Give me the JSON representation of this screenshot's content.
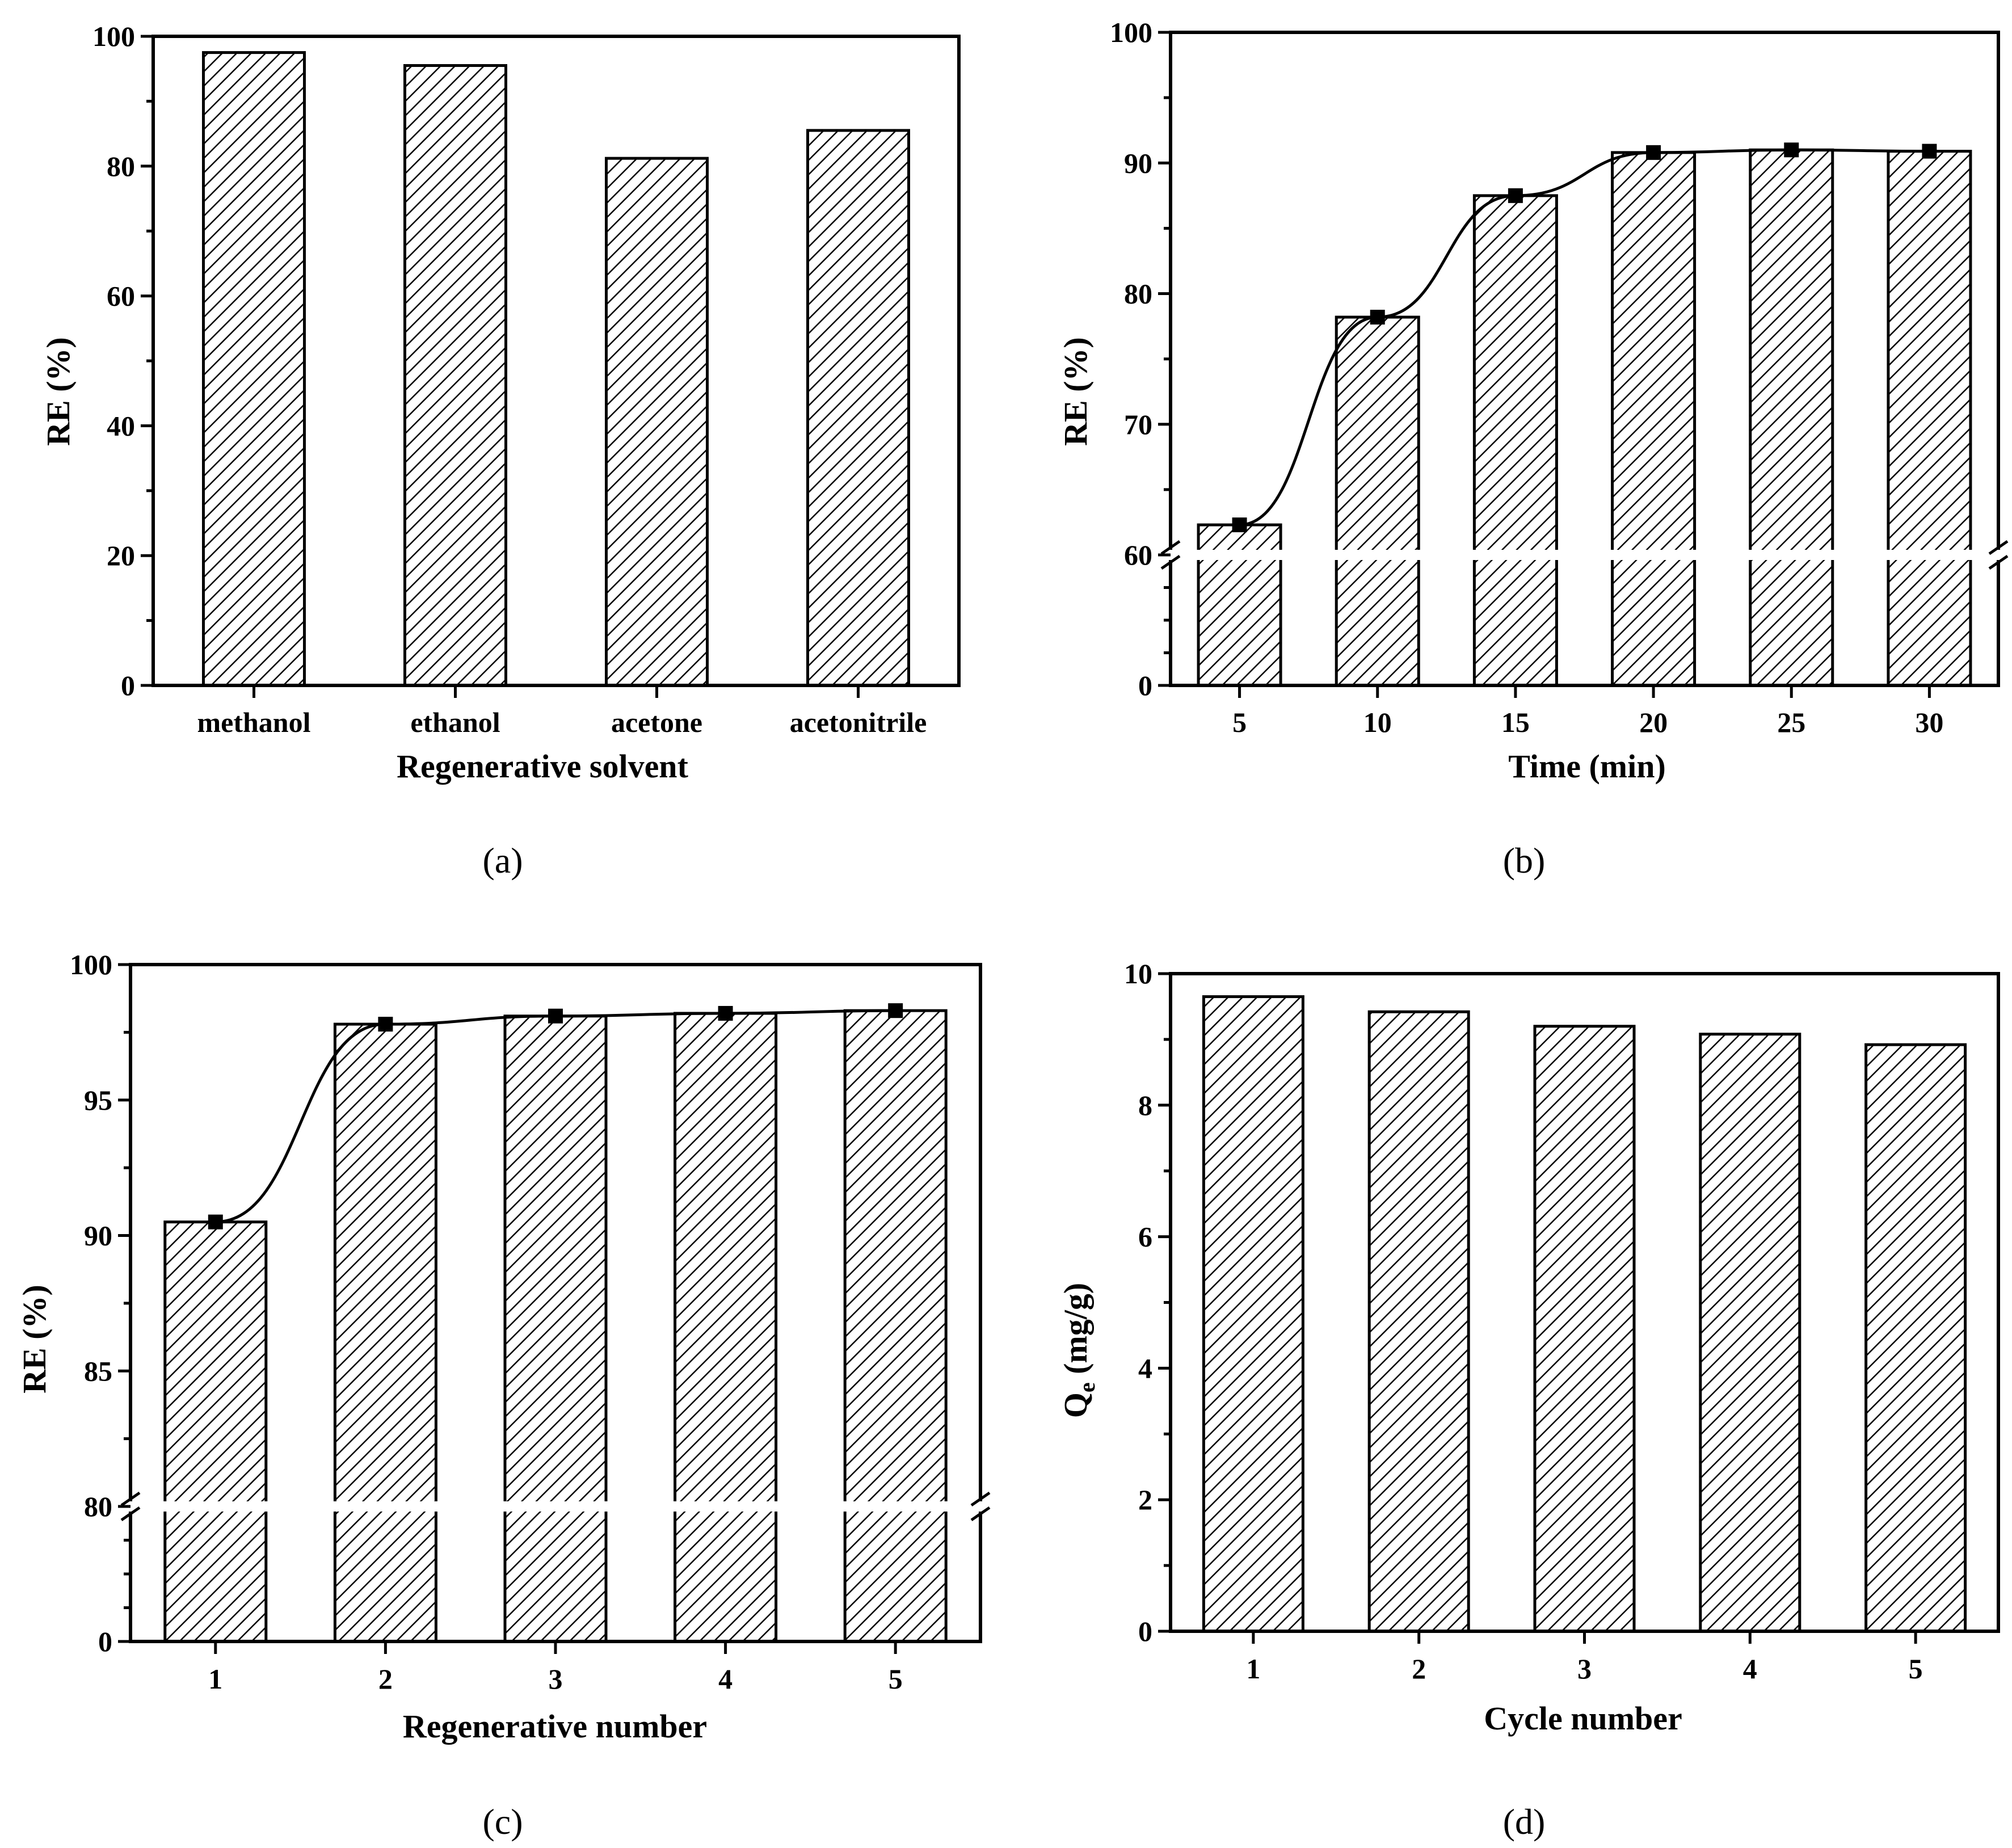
{
  "chart_data": [
    {
      "id": "a",
      "type": "bar",
      "panel_label": "(a)",
      "xlabel": "Regenerative solvent",
      "ylabel": "RE (%)",
      "categories": [
        "methanol",
        "ethanol",
        "acetone",
        "acetonitrile"
      ],
      "values": [
        97.5,
        95.5,
        81.2,
        85.5
      ],
      "ylim": [
        0,
        100
      ],
      "yticks": [
        0,
        20,
        40,
        60,
        80,
        100
      ],
      "ytick_labels": [
        "0",
        "20",
        "40",
        "60",
        "80",
        "100"
      ],
      "line": false,
      "axis_break": null
    },
    {
      "id": "b",
      "type": "bar",
      "panel_label": "(b)",
      "xlabel": "Time (min)",
      "ylabel": "RE (%)",
      "categories": [
        "5",
        "10",
        "15",
        "20",
        "25",
        "30"
      ],
      "values": [
        62.3,
        78.2,
        87.5,
        90.8,
        91.0,
        90.9
      ],
      "ylim": [
        0,
        100
      ],
      "yticks": [
        0,
        60,
        70,
        80,
        90,
        100
      ],
      "ytick_labels": [
        "0",
        "60",
        "70",
        "80",
        "90",
        "100"
      ],
      "line": true,
      "axis_break": {
        "at": 60,
        "lower_max": 60
      }
    },
    {
      "id": "c",
      "type": "bar",
      "panel_label": "(c)",
      "xlabel": "Regenerative number",
      "ylabel": "RE (%)",
      "categories": [
        "1",
        "2",
        "3",
        "4",
        "5"
      ],
      "values": [
        90.5,
        97.8,
        98.1,
        98.2,
        98.3
      ],
      "ylim": [
        0,
        100
      ],
      "yticks": [
        0,
        80,
        85,
        90,
        95,
        100
      ],
      "ytick_labels": [
        "0",
        "80",
        "85",
        "90",
        "95",
        "100"
      ],
      "line": true,
      "axis_break": {
        "at": 80,
        "lower_max": 80
      }
    },
    {
      "id": "d",
      "type": "bar",
      "panel_label": "(d)",
      "xlabel": "Cycle number",
      "ylabel": "Qe (mg/g)",
      "categories": [
        "1",
        "2",
        "3",
        "4",
        "5"
      ],
      "values": [
        9.65,
        9.42,
        9.2,
        9.08,
        8.92
      ],
      "ylim": [
        0,
        10
      ],
      "yticks": [
        0,
        2,
        4,
        6,
        8,
        10
      ],
      "ytick_labels": [
        "0",
        "2",
        "4",
        "6",
        "8",
        "10"
      ],
      "line": false,
      "axis_break": null
    }
  ]
}
